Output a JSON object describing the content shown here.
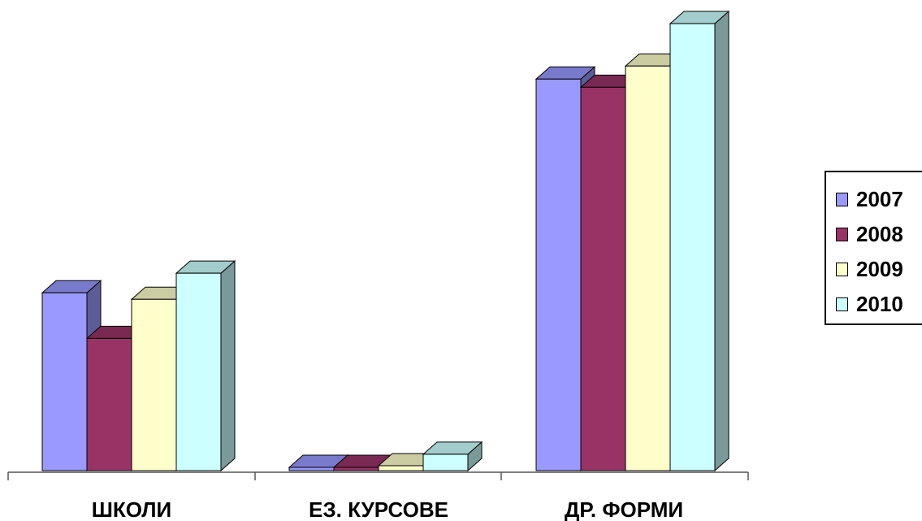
{
  "chart_data": {
    "type": "bar",
    "categories": [
      "ШКОЛИ",
      "ЕЗ. КУРСОВЕ",
      "ДР. ФОРМИ"
    ],
    "series": [
      {
        "name": "2007",
        "values": [
          218,
          4,
          480
        ],
        "color": "#9999ff",
        "side": "#5c5c99",
        "top": "#7a7acc"
      },
      {
        "name": "2008",
        "values": [
          162,
          4,
          470
        ],
        "color": "#993366",
        "side": "#5c1f3d",
        "top": "#7a2952"
      },
      {
        "name": "2009",
        "values": [
          210,
          6,
          496
        ],
        "color": "#ffffcc",
        "side": "#99997a",
        "top": "#cccca3"
      },
      {
        "name": "2010",
        "values": [
          242,
          20,
          548
        ],
        "color": "#ccffff",
        "side": "#7a9999",
        "top": "#a3cccc"
      }
    ],
    "ylim": [
      0,
      560
    ],
    "grid": false,
    "legend": "right",
    "view": "3d-clustered-column"
  }
}
